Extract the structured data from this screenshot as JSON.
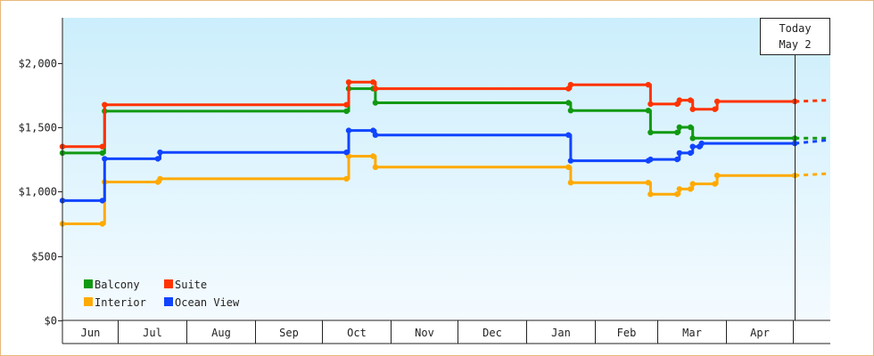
{
  "chart_data": {
    "type": "line",
    "step": true,
    "title": "",
    "xlabel": "",
    "ylabel": "",
    "y_ticks": [
      {
        "value": 0,
        "label": "$0"
      },
      {
        "value": 500,
        "label": "$500"
      },
      {
        "value": 1000,
        "label": "$1,000"
      },
      {
        "value": 1500,
        "label": "$1,500"
      },
      {
        "value": 2000,
        "label": "$2,000"
      }
    ],
    "ylim": [
      0,
      2350
    ],
    "xlim": [
      "2022-06-06",
      "2023-05-18"
    ],
    "months": [
      {
        "label": "Jun",
        "start": "2022-06-06",
        "end": "2022-07-01"
      },
      {
        "label": "Jul",
        "start": "2022-07-01",
        "end": "2022-08-01"
      },
      {
        "label": "Aug",
        "start": "2022-08-01",
        "end": "2022-09-01"
      },
      {
        "label": "Sep",
        "start": "2022-09-01",
        "end": "2022-10-01"
      },
      {
        "label": "Oct",
        "start": "2022-10-01",
        "end": "2022-11-01"
      },
      {
        "label": "Nov",
        "start": "2022-11-01",
        "end": "2022-12-01"
      },
      {
        "label": "Dec",
        "start": "2022-12-01",
        "end": "2023-01-01"
      },
      {
        "label": "Jan",
        "start": "2023-01-01",
        "end": "2023-02-01"
      },
      {
        "label": "Feb",
        "start": "2023-02-01",
        "end": "2023-03-01"
      },
      {
        "label": "Mar",
        "start": "2023-03-01",
        "end": "2023-04-01"
      },
      {
        "label": "Apr",
        "start": "2023-04-01",
        "end": "2023-05-01"
      },
      {
        "label": "",
        "start": "2023-05-01",
        "end": "2023-05-18"
      }
    ],
    "today": {
      "date": "2023-05-02",
      "label_line1": "Today",
      "label_line2": "May 2"
    },
    "legend": {
      "placement": "bottom-left"
    },
    "grid": false,
    "series": [
      {
        "name": "Balcony",
        "color": "#119911",
        "points": [
          [
            "2022-06-06",
            1300
          ],
          [
            "2022-06-24",
            1300
          ],
          [
            "2022-06-25",
            1625
          ],
          [
            "2022-10-12",
            1625
          ],
          [
            "2022-10-13",
            1800
          ],
          [
            "2022-10-24",
            1800
          ],
          [
            "2022-10-25",
            1690
          ],
          [
            "2023-01-20",
            1690
          ],
          [
            "2023-01-21",
            1630
          ],
          [
            "2023-02-25",
            1630
          ],
          [
            "2023-02-26",
            1460
          ],
          [
            "2023-03-10",
            1460
          ],
          [
            "2023-03-11",
            1500
          ],
          [
            "2023-03-16",
            1500
          ],
          [
            "2023-03-17",
            1415
          ],
          [
            "2023-05-02",
            1415
          ]
        ],
        "projection": 1415
      },
      {
        "name": "Suite",
        "color": "#ff3300",
        "points": [
          [
            "2022-06-06",
            1350
          ],
          [
            "2022-06-24",
            1350
          ],
          [
            "2022-06-25",
            1675
          ],
          [
            "2022-10-12",
            1675
          ],
          [
            "2022-10-13",
            1850
          ],
          [
            "2022-10-24",
            1850
          ],
          [
            "2022-10-25",
            1800
          ],
          [
            "2023-01-20",
            1800
          ],
          [
            "2023-01-21",
            1830
          ],
          [
            "2023-02-25",
            1830
          ],
          [
            "2023-02-26",
            1680
          ],
          [
            "2023-03-10",
            1680
          ],
          [
            "2023-03-11",
            1710
          ],
          [
            "2023-03-16",
            1710
          ],
          [
            "2023-03-17",
            1640
          ],
          [
            "2023-03-27",
            1640
          ],
          [
            "2023-03-28",
            1700
          ],
          [
            "2023-05-02",
            1700
          ]
        ],
        "projection": 1710
      },
      {
        "name": "Interior",
        "color": "#ffaa00",
        "points": [
          [
            "2022-06-06",
            750
          ],
          [
            "2022-06-24",
            750
          ],
          [
            "2022-06-25",
            1075
          ],
          [
            "2022-07-19",
            1075
          ],
          [
            "2022-07-20",
            1100
          ],
          [
            "2022-10-12",
            1100
          ],
          [
            "2022-10-13",
            1275
          ],
          [
            "2022-10-24",
            1275
          ],
          [
            "2022-10-25",
            1190
          ],
          [
            "2023-01-20",
            1190
          ],
          [
            "2023-01-21",
            1070
          ],
          [
            "2023-02-25",
            1070
          ],
          [
            "2023-02-26",
            980
          ],
          [
            "2023-03-10",
            980
          ],
          [
            "2023-03-11",
            1020
          ],
          [
            "2023-03-16",
            1020
          ],
          [
            "2023-03-17",
            1060
          ],
          [
            "2023-03-27",
            1060
          ],
          [
            "2023-03-28",
            1125
          ],
          [
            "2023-05-02",
            1125
          ]
        ],
        "projection": 1140
      },
      {
        "name": "Ocean View",
        "color": "#1144ff",
        "points": [
          [
            "2022-06-06",
            930
          ],
          [
            "2022-06-24",
            930
          ],
          [
            "2022-06-25",
            1255
          ],
          [
            "2022-07-19",
            1255
          ],
          [
            "2022-07-20",
            1305
          ],
          [
            "2022-10-12",
            1305
          ],
          [
            "2022-10-13",
            1475
          ],
          [
            "2022-10-24",
            1475
          ],
          [
            "2022-10-25",
            1440
          ],
          [
            "2023-01-20",
            1440
          ],
          [
            "2023-01-21",
            1240
          ],
          [
            "2023-02-25",
            1240
          ],
          [
            "2023-02-26",
            1250
          ],
          [
            "2023-03-10",
            1250
          ],
          [
            "2023-03-11",
            1300
          ],
          [
            "2023-03-16",
            1300
          ],
          [
            "2023-03-17",
            1350
          ],
          [
            "2023-03-20",
            1350
          ],
          [
            "2023-03-21",
            1375
          ],
          [
            "2023-05-02",
            1375
          ]
        ],
        "projection": 1400
      }
    ]
  },
  "colors": {
    "plot_bg_top": "#cceefc",
    "plot_bg_bottom": "#f4fbff",
    "frame_border": "#e8b87a",
    "axis": "#222222"
  }
}
